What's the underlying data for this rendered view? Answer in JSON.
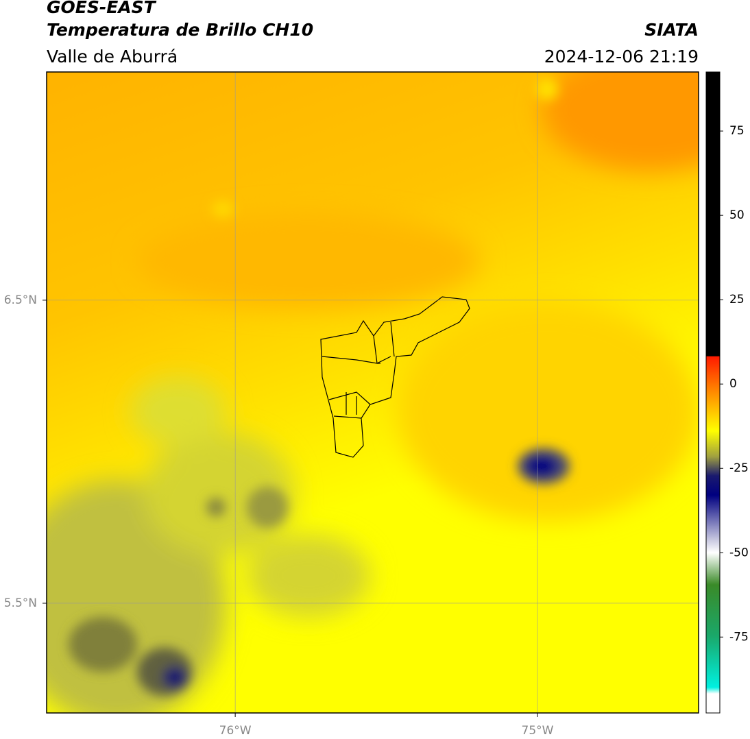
{
  "header": {
    "title": "GOES-EAST",
    "subtitle": "Temperatura de Brillo CH10",
    "region": "Valle de Aburrá",
    "source": "SIATA",
    "datetime": "2024-12-06 21:19"
  },
  "map": {
    "xlim": [
      -76.624,
      -74.467
    ],
    "ylim": [
      5.138,
      7.253
    ],
    "xticks": [
      {
        "value": -76,
        "label": "76°W"
      },
      {
        "value": -75,
        "label": "75°W"
      }
    ],
    "yticks": [
      {
        "value": 6.5,
        "label": "6.5°N"
      },
      {
        "value": 5.5,
        "label": "5.5°N"
      }
    ],
    "grid": true
  },
  "colorbar": {
    "lim": [
      -97.5,
      92.5
    ],
    "ticks": [
      75,
      50,
      25,
      0,
      -25,
      -50,
      -75
    ]
  }
}
